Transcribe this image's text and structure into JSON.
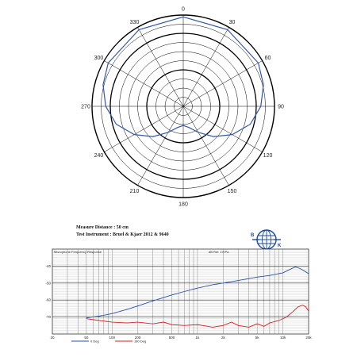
{
  "polar_chart": {
    "chart_data": {
      "type": "polar",
      "angle_ticks": [
        0,
        30,
        60,
        90,
        120,
        150,
        180,
        210,
        240,
        270,
        300,
        330
      ],
      "angle_tick_labels": [
        "0",
        "30",
        "60",
        "90",
        "120",
        "150",
        "180",
        "210",
        "240",
        "270",
        "300",
        "330"
      ],
      "series": [
        {
          "color": "#3355aa",
          "points": [
            {
              "angle": 0,
              "r": 0.98
            },
            {
              "angle": 30,
              "r": 0.97
            },
            {
              "angle": 60,
              "r": 0.95
            },
            {
              "angle": 75,
              "r": 0.91
            },
            {
              "angle": 90,
              "r": 0.85
            },
            {
              "angle": 105,
              "r": 0.76
            },
            {
              "angle": 120,
              "r": 0.62
            },
            {
              "angle": 135,
              "r": 0.47
            },
            {
              "angle": 150,
              "r": 0.33
            },
            {
              "angle": 165,
              "r": 0.24
            },
            {
              "angle": 180,
              "r": 0.21
            },
            {
              "angle": 195,
              "r": 0.24
            },
            {
              "angle": 210,
              "r": 0.33
            },
            {
              "angle": 225,
              "r": 0.47
            },
            {
              "angle": 240,
              "r": 0.62
            },
            {
              "angle": 255,
              "r": 0.76
            },
            {
              "angle": 270,
              "r": 0.85
            },
            {
              "angle": 285,
              "r": 0.91
            },
            {
              "angle": 300,
              "r": 0.95
            },
            {
              "angle": 330,
              "r": 0.97
            }
          ]
        }
      ]
    }
  },
  "info": {
    "line1": "Measure Distance : 50 cm",
    "line2": "Test Instrument : Bruel & Kjaer 2012 & 9640"
  },
  "logo": {
    "letter_b": "B",
    "letter_k": "K"
  },
  "fr_chart": {
    "header_left": "Microphone Frequency Response",
    "header_right": "dB Ref. 1V/Pa",
    "chart_data": {
      "type": "line",
      "x_scale": "log",
      "xlim": [
        20,
        20000
      ],
      "ylim": [
        -80,
        -30
      ],
      "y_tick_values": [
        -40,
        -50,
        -60,
        -70
      ],
      "y_tick_labels": [
        "-40",
        "-50",
        "-60",
        "-70"
      ],
      "x_tick_values": [
        20,
        50,
        100,
        200,
        500,
        1000,
        2000,
        5000,
        10000,
        20000
      ],
      "x_tick_labels": [
        "20",
        "50",
        "100",
        "200",
        "500",
        "1k",
        "2k",
        "5k",
        "10k",
        "20k"
      ],
      "series": [
        {
          "name": "0 Deg",
          "color": "#2a4fb0",
          "points": [
            [
              50,
              -70.5
            ],
            [
              70,
              -69.5
            ],
            [
              100,
              -68
            ],
            [
              150,
              -65.5
            ],
            [
              200,
              -63.5
            ],
            [
              300,
              -60.5
            ],
            [
              500,
              -57
            ],
            [
              700,
              -55
            ],
            [
              1000,
              -53
            ],
            [
              1500,
              -51
            ],
            [
              2000,
              -50
            ],
            [
              3000,
              -48.5
            ],
            [
              5000,
              -46.5
            ],
            [
              7000,
              -45.5
            ],
            [
              10000,
              -44
            ],
            [
              12000,
              -42
            ],
            [
              14000,
              -40.5
            ],
            [
              16000,
              -41.5
            ],
            [
              18000,
              -43
            ],
            [
              20000,
              -44.5
            ]
          ]
        },
        {
          "name": "180 Deg",
          "color": "#d42020",
          "points": [
            [
              50,
              -71
            ],
            [
              70,
              -72
            ],
            [
              100,
              -73
            ],
            [
              150,
              -73.5
            ],
            [
              200,
              -73
            ],
            [
              300,
              -74
            ],
            [
              400,
              -73
            ],
            [
              500,
              -74.5
            ],
            [
              700,
              -75
            ],
            [
              1000,
              -74.5
            ],
            [
              1500,
              -76
            ],
            [
              2000,
              -75
            ],
            [
              2500,
              -73
            ],
            [
              3000,
              -75
            ],
            [
              4000,
              -76
            ],
            [
              5000,
              -74
            ],
            [
              6000,
              -75.5
            ],
            [
              7000,
              -73.5
            ],
            [
              9000,
              -72
            ],
            [
              11000,
              -70
            ],
            [
              13000,
              -67
            ],
            [
              15000,
              -64
            ],
            [
              17000,
              -63
            ],
            [
              18500,
              -64
            ],
            [
              20000,
              -66.5
            ]
          ]
        }
      ]
    }
  }
}
